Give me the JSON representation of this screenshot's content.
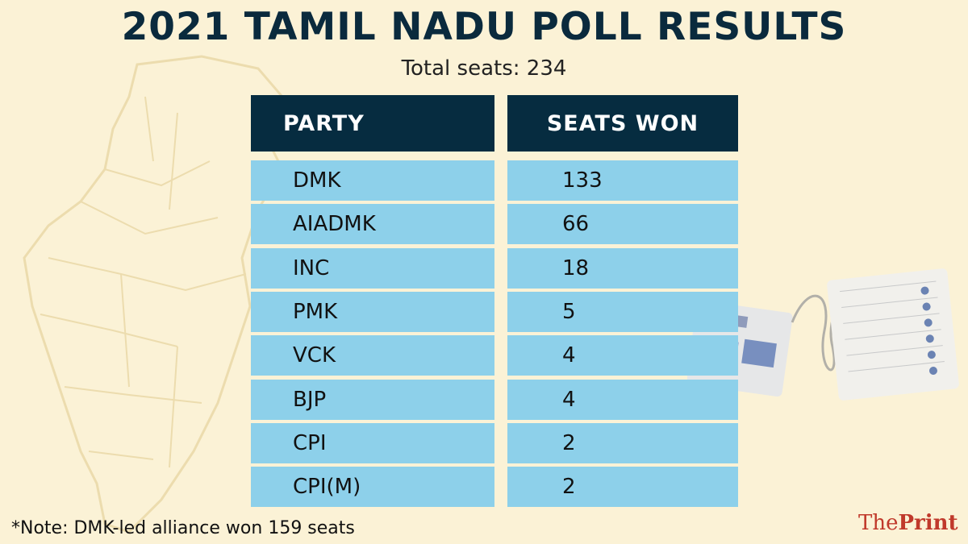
{
  "chart_data": {
    "type": "table",
    "title": "2021 TAMIL NADU POLL RESULTS",
    "subtitle": "Total seats: 234",
    "columns": [
      "PARTY",
      "SEATS WON"
    ],
    "rows": [
      {
        "party": "DMK",
        "seats": "133"
      },
      {
        "party": "AIADMK",
        "seats": "66"
      },
      {
        "party": "INC",
        "seats": "18"
      },
      {
        "party": "PMK",
        "seats": "5"
      },
      {
        "party": "VCK",
        "seats": "4"
      },
      {
        "party": "BJP",
        "seats": "4"
      },
      {
        "party": "CPI",
        "seats": "2"
      },
      {
        "party": "CPI(M)",
        "seats": "2"
      }
    ],
    "note": "*Note: DMK-led alliance won 159 seats"
  },
  "logo": {
    "the": "The",
    "print": "Print"
  },
  "colors": {
    "background": "#fbf2d6",
    "header": "#062c40",
    "row": "#8dd0ea",
    "brand": "#c0392b"
  }
}
